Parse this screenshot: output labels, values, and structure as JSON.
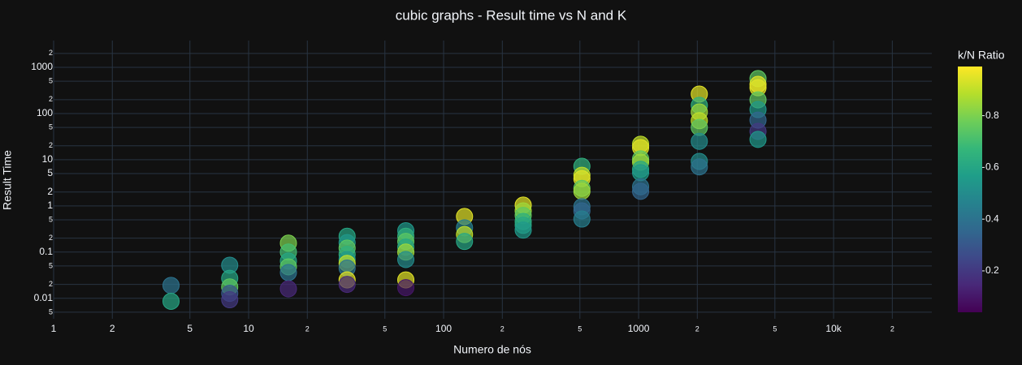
{
  "chart_data": {
    "type": "scatter",
    "title": "cubic graphs - Result time vs N and K",
    "x_label": "Numero de nós",
    "y_label": "Result Time",
    "colorbar_title": "k/N Ratio",
    "log_x": true,
    "log_y": true,
    "grid": true,
    "xlim": [
      1,
      31900
    ],
    "ylim": [
      0.0036,
      3800
    ],
    "xticks": [
      1,
      2,
      5,
      10,
      {
        "value": 20,
        "label": "2"
      },
      {
        "value": 50,
        "label": "5"
      },
      100,
      {
        "value": 200,
        "label": "2"
      },
      {
        "value": 500,
        "label": "5"
      },
      1000,
      {
        "value": 2000,
        "label": "2"
      },
      {
        "value": 5000,
        "label": "5"
      },
      {
        "value": 10000,
        "label": "10k"
      },
      {
        "value": 20000,
        "label": "2"
      }
    ],
    "yticks": [
      {
        "value": 0.005,
        "label": "5"
      },
      0.01,
      {
        "value": 0.02,
        "label": "2"
      },
      {
        "value": 0.05,
        "label": "5"
      },
      0.1,
      {
        "value": 0.2,
        "label": "2"
      },
      {
        "value": 0.5,
        "label": "5"
      },
      1,
      2,
      5,
      10,
      {
        "value": 20,
        "label": "2"
      },
      {
        "value": 50,
        "label": "5"
      },
      100,
      {
        "value": 200,
        "label": "2"
      },
      {
        "value": 500,
        "label": "5"
      },
      1000,
      {
        "value": 2000,
        "label": "2"
      }
    ],
    "clim": [
      0.04,
      0.99
    ],
    "cticks": [
      0.2,
      0.4,
      0.6,
      0.8
    ],
    "colorscale": [
      "#440154",
      "#482878",
      "#3e4989",
      "#31688e",
      "#26828e",
      "#1f9e89",
      "#35b779",
      "#6ece58",
      "#b5de2b",
      "#fde725"
    ],
    "x": [
      4,
      4,
      8,
      8,
      8,
      8,
      8,
      16,
      16,
      16,
      16,
      16,
      16,
      32,
      32,
      32,
      32,
      32,
      32,
      32,
      32,
      32,
      64,
      64,
      64,
      64,
      64,
      64,
      64,
      64,
      128,
      128,
      128,
      128,
      256,
      256,
      256,
      256,
      256,
      256,
      512,
      512,
      512,
      512,
      512,
      512,
      512,
      512,
      1024,
      1024,
      1024,
      1024,
      1024,
      1024,
      1024,
      1024,
      2048,
      2048,
      2048,
      2048,
      2048,
      2048,
      2048,
      2048,
      4096,
      4096,
      4096,
      4096,
      4096,
      4096,
      4096,
      4096
    ],
    "values": [
      0.019,
      0.0086,
      0.052,
      0.027,
      0.0176,
      0.0128,
      0.0093,
      0.156,
      0.1,
      0.064,
      0.048,
      0.036,
      0.016,
      0.22,
      0.16,
      0.122,
      0.089,
      0.069,
      0.057,
      0.045,
      0.025,
      0.02,
      0.29,
      0.22,
      0.17,
      0.128,
      0.1,
      0.069,
      0.025,
      0.017,
      0.59,
      0.336,
      0.24,
      0.17,
      1.04,
      0.78,
      0.62,
      0.46,
      0.38,
      0.3,
      7.2,
      4.6,
      3.9,
      2.4,
      2.07,
      0.96,
      0.78,
      0.52,
      21.6,
      18.3,
      10.4,
      8.85,
      6.2,
      5.25,
      2.6,
      2.07,
      264,
      150,
      108,
      70,
      50,
      25,
      9.2,
      7,
      570,
      427,
      362,
      198,
      122,
      72,
      41,
      27.5
    ],
    "color_values": [
      0.4,
      0.6,
      0.5,
      0.6,
      0.75,
      0.3,
      0.2,
      0.8,
      0.7,
      0.6,
      0.75,
      0.4,
      0.15,
      0.6,
      0.55,
      0.75,
      0.65,
      0.55,
      0.9,
      0.4,
      0.95,
      0.15,
      0.55,
      0.65,
      0.75,
      0.6,
      0.85,
      0.5,
      0.95,
      0.1,
      0.95,
      0.45,
      0.9,
      0.6,
      0.95,
      0.85,
      0.75,
      0.65,
      0.6,
      0.55,
      0.65,
      0.9,
      0.95,
      0.75,
      0.85,
      0.4,
      0.35,
      0.45,
      0.9,
      0.95,
      0.75,
      0.85,
      0.6,
      0.55,
      0.4,
      0.35,
      0.95,
      0.65,
      0.85,
      0.9,
      0.75,
      0.5,
      0.5,
      0.4,
      0.75,
      0.95,
      0.95,
      0.75,
      0.55,
      0.35,
      0.2,
      0.55
    ]
  }
}
